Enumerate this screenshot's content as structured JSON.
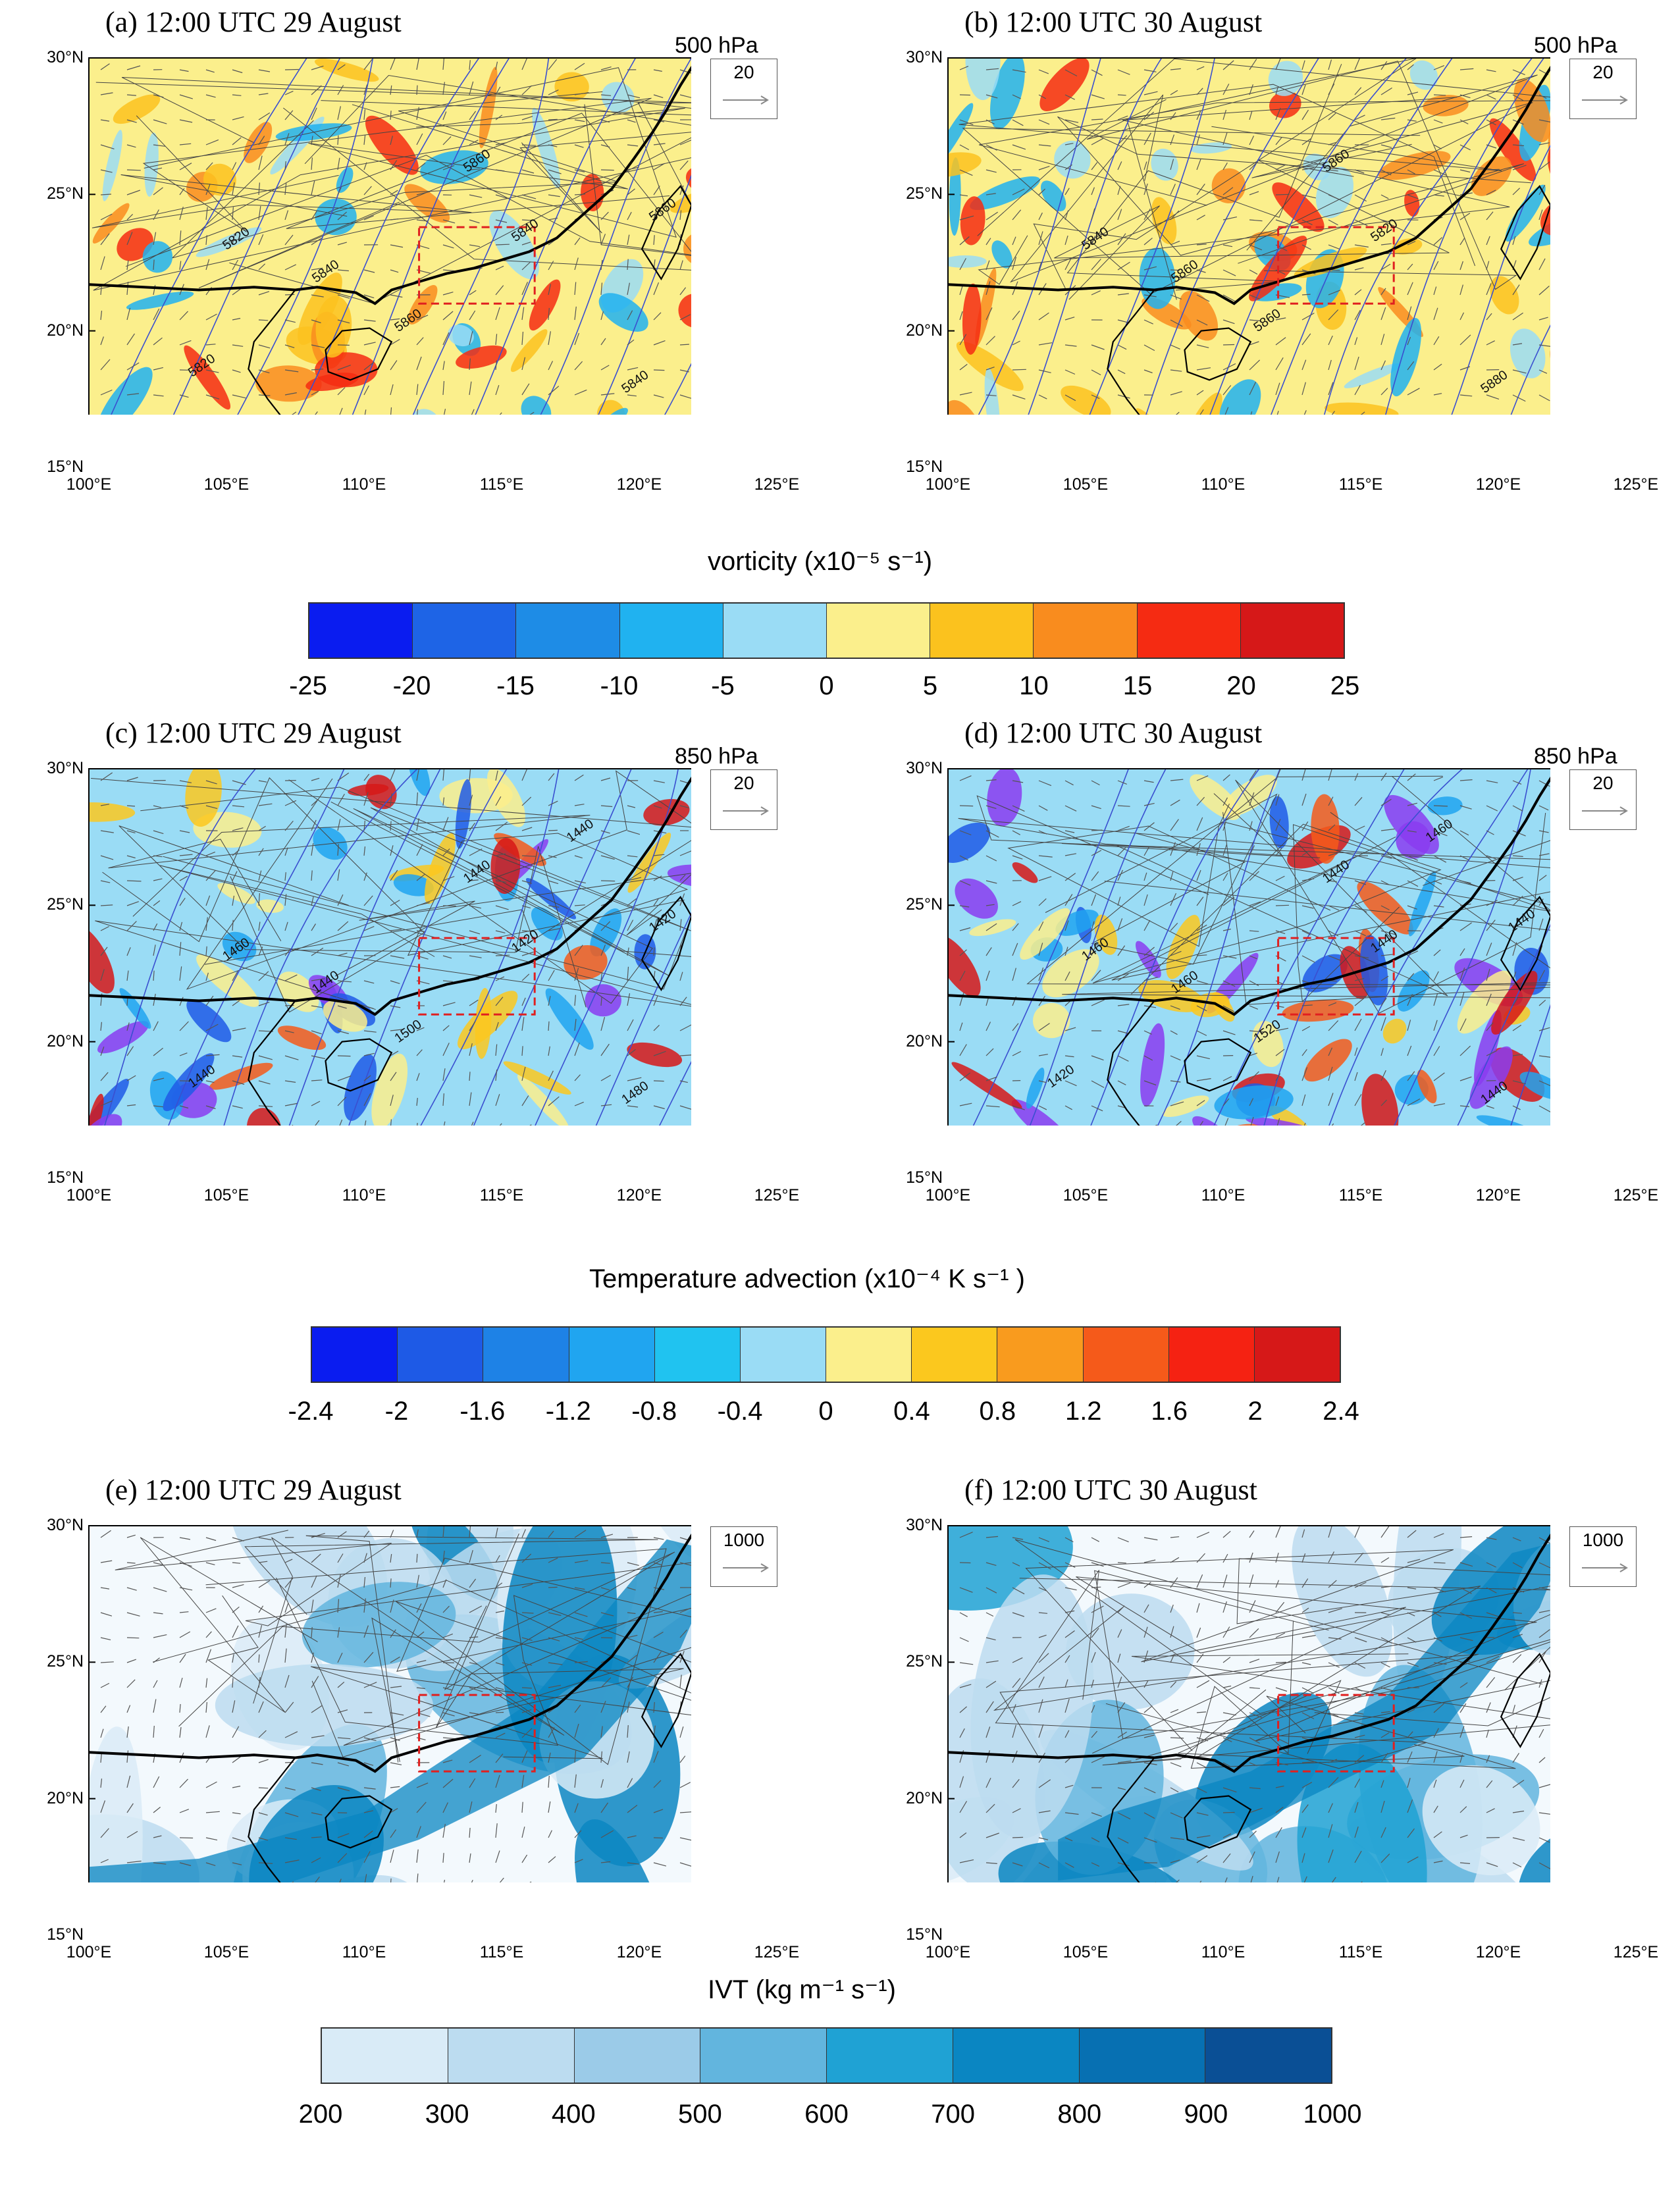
{
  "panels": [
    {
      "title": "(a) 12:00 UTC 29 August",
      "level": "500 hPa",
      "ref": "20",
      "scheme": "vort",
      "dayVariant": 0,
      "contours": [
        "5840",
        "5860",
        "5840",
        "5820",
        "5860",
        "5840",
        "5820",
        "5860"
      ]
    },
    {
      "title": "(b) 12:00 UTC 30 August",
      "level": "500 hPa",
      "ref": "20",
      "scheme": "vort",
      "dayVariant": 1,
      "contours": [
        "5860",
        "5860",
        "5820",
        "5840",
        "5860",
        "5880"
      ]
    },
    {
      "title": "(c) 12:00 UTC 29 August",
      "level": "850 hPa",
      "ref": "20",
      "scheme": "tadv",
      "dayVariant": 0,
      "contours": [
        "1440",
        "1440",
        "1420",
        "1460",
        "1500",
        "1480",
        "1440",
        "1420",
        "1440"
      ]
    },
    {
      "title": "(d) 12:00 UTC 30 August",
      "level": "850 hPa",
      "ref": "20",
      "scheme": "tadv",
      "dayVariant": 1,
      "contours": [
        "1460",
        "1440",
        "1440",
        "1460",
        "1520",
        "1440",
        "1420",
        "1440",
        "1460"
      ]
    },
    {
      "title": "(e) 12:00 UTC 29 August",
      "level": "",
      "ref": "1000",
      "scheme": "ivt",
      "dayVariant": 0,
      "contours": []
    },
    {
      "title": "(f) 12:00 UTC 30 August",
      "level": "",
      "ref": "1000",
      "scheme": "ivt",
      "dayVariant": 1,
      "contours": []
    }
  ],
  "axes": {
    "lat_labels": [
      "30°N",
      "25°N",
      "20°N",
      "15°N"
    ],
    "lon_labels": [
      "100°E",
      "105°E",
      "110°E",
      "115°E",
      "120°E",
      "125°E"
    ]
  },
  "colorbars": [
    {
      "title": "vorticity (x10⁻⁵ s⁻¹)",
      "labels": [
        "-25",
        "-20",
        "-15",
        "-10",
        "-5",
        "0",
        "5",
        "10",
        "15",
        "20",
        "25"
      ],
      "colors": [
        "#0a1cf0",
        "#1e64e6",
        "#1e8ce6",
        "#20b2f0",
        "#9adcf5",
        "#fbef8c",
        "#fbc21e",
        "#f98c1e",
        "#f52b12",
        "#d61818"
      ]
    },
    {
      "title": "Temperature advection (x10⁻⁴ K s⁻¹ )",
      "labels": [
        "-2.4",
        "-2",
        "-1.6",
        "-1.2",
        "-0.8",
        "-0.4",
        "0",
        "0.4",
        "0.8",
        "1.2",
        "1.6",
        "2",
        "2.4"
      ],
      "colors": [
        "#0a1cf0",
        "#1e5ae6",
        "#1e82e6",
        "#20a5f0",
        "#20c3f0",
        "#9adcf5",
        "#fbef8c",
        "#fbc81e",
        "#f99b1e",
        "#f55a1a",
        "#f52212",
        "#d61818"
      ]
    },
    {
      "title": "IVT (kg m⁻¹ s⁻¹)",
      "labels": [
        "200",
        "300",
        "400",
        "500",
        "600",
        "700",
        "800",
        "900",
        "1000"
      ],
      "colors": [
        "#d9ebf7",
        "#bcdcf0",
        "#9bcbe8",
        "#62b5de",
        "#1fa2d4",
        "#0a86c2",
        "#0770b2",
        "#0a4f95"
      ]
    }
  ]
}
